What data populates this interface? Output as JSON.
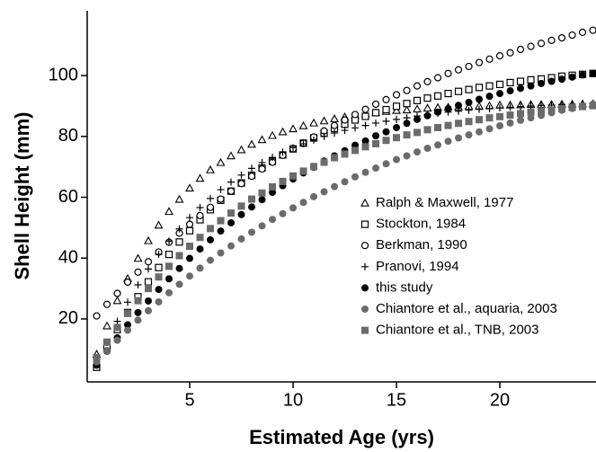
{
  "chart_data": {
    "type": "scatter",
    "xlabel": "Estimated Age (yrs)",
    "ylabel": "Shell Height (mm)",
    "xlim": [
      0,
      24.65
    ],
    "ylim": [
      -0.7,
      121.3
    ],
    "xticks": [
      5,
      10,
      15,
      20
    ],
    "yticks": [
      20,
      40,
      60,
      80,
      100
    ],
    "grid": false,
    "legend": "lower right",
    "x": [
      0.5,
      1,
      1.5,
      2,
      2.5,
      3,
      3.5,
      4,
      4.5,
      5,
      5.5,
      6,
      6.5,
      7,
      7.5,
      8,
      8.5,
      9,
      9.5,
      10,
      10.5,
      11,
      11.5,
      12,
      12.5,
      13,
      13.5,
      14,
      14.5,
      15,
      15.5,
      16,
      16.5,
      17,
      17.5,
      18,
      18.5,
      19,
      19.5,
      20,
      20.5,
      21,
      21.5,
      22,
      22.5,
      23,
      23.5,
      24,
      24.5
    ],
    "series": [
      {
        "name": "Ralph & Maxwell, 1977",
        "color": "#000000",
        "marker": "triangle-open",
        "values": [
          8.4,
          17.7,
          26.0,
          33.3,
          39.9,
          45.7,
          50.8,
          55.3,
          59.3,
          63.0,
          66.2,
          69.0,
          71.4,
          73.6,
          75.6,
          77.4,
          78.9,
          80.3,
          81.5,
          82.5,
          83.5,
          84.4,
          85.1,
          85.8,
          86.4,
          86.9,
          87.4,
          87.8,
          88.2,
          88.5,
          88.7,
          89.0,
          89.3,
          89.5,
          89.6,
          89.7,
          89.9,
          90.0,
          90.1,
          90.3,
          90.3,
          90.4,
          90.5,
          90.5,
          90.5,
          90.6,
          90.6,
          90.7,
          90.7
        ]
      },
      {
        "name": "Stockton, 1984",
        "color": "#000000",
        "marker": "square-open",
        "values": [
          4.1,
          10.5,
          16.5,
          22.1,
          27.3,
          32.2,
          36.9,
          41.2,
          45.3,
          49.0,
          52.6,
          55.9,
          59.0,
          62.0,
          64.7,
          67.2,
          69.6,
          71.8,
          73.9,
          75.9,
          77.8,
          79.5,
          81.1,
          82.6,
          84.0,
          85.4,
          86.6,
          87.8,
          88.8,
          89.9,
          90.8,
          91.8,
          92.6,
          93.3,
          94.1,
          94.8,
          95.4,
          96.1,
          96.6,
          97.1,
          97.7,
          98.1,
          98.6,
          98.9,
          99.3,
          99.8,
          100.1,
          100.4,
          100.7
        ]
      },
      {
        "name": "Berkman, 1990",
        "color": "#000000",
        "marker": "circle-open",
        "values": [
          21.0,
          24.8,
          28.4,
          32.1,
          35.4,
          38.8,
          42.0,
          45.2,
          48.2,
          51.1,
          54.0,
          56.7,
          59.4,
          62.0,
          64.5,
          66.9,
          69.3,
          71.5,
          73.8,
          75.9,
          77.8,
          79.8,
          81.8,
          83.6,
          85.4,
          87.2,
          88.9,
          90.6,
          92.1,
          93.7,
          95.1,
          96.6,
          98.0,
          99.3,
          100.7,
          101.9,
          103.0,
          104.3,
          105.4,
          106.5,
          107.5,
          108.6,
          109.6,
          110.6,
          111.6,
          112.4,
          113.3,
          114.2,
          114.9
        ]
      },
      {
        "name": "Pranovi, 1994",
        "color": "#000000",
        "marker": "plus",
        "values": [
          4.9,
          12.3,
          19.2,
          25.5,
          31.2,
          36.4,
          41.2,
          45.6,
          49.6,
          53.3,
          56.6,
          59.6,
          62.5,
          65.0,
          67.3,
          69.5,
          71.4,
          73.1,
          74.8,
          76.3,
          77.6,
          78.8,
          80.0,
          81.1,
          82.0,
          82.8,
          83.6,
          84.4,
          85.0,
          85.6,
          86.1,
          86.7,
          87.1,
          87.6,
          88.0,
          88.3,
          88.6,
          88.9,
          89.1,
          89.4,
          89.6,
          89.8,
          90.0,
          90.2,
          90.3,
          90.5,
          90.6,
          90.7,
          90.8
        ]
      },
      {
        "name": "this study",
        "color": "#000000",
        "marker": "circle",
        "values": [
          4.8,
          9.4,
          13.8,
          18.1,
          22.1,
          25.9,
          29.7,
          33.2,
          36.6,
          39.9,
          43.0,
          46.0,
          48.9,
          51.6,
          54.3,
          56.8,
          59.2,
          61.6,
          63.8,
          66.0,
          68.0,
          69.9,
          71.9,
          73.6,
          75.3,
          77.1,
          78.5,
          80.2,
          81.5,
          82.9,
          84.3,
          85.6,
          86.8,
          88.0,
          89.1,
          90.2,
          91.2,
          92.2,
          93.2,
          94.1,
          95.0,
          95.8,
          96.6,
          97.4,
          98.1,
          98.8,
          99.5,
          100.2,
          100.7
        ]
      },
      {
        "name": "Chiantore et al., aquaria, 2003",
        "color": "#6b6b6b",
        "marker": "circle",
        "values": [
          5.9,
          9.6,
          13.0,
          16.3,
          19.6,
          22.7,
          25.6,
          28.6,
          31.4,
          34.1,
          36.7,
          39.3,
          41.7,
          44.0,
          46.3,
          48.5,
          50.6,
          52.7,
          54.6,
          56.5,
          58.3,
          60.2,
          61.8,
          63.5,
          65.1,
          66.7,
          68.2,
          69.6,
          71.0,
          72.4,
          73.6,
          74.9,
          76.1,
          77.2,
          78.4,
          79.5,
          80.5,
          81.5,
          82.5,
          83.5,
          84.4,
          85.3,
          86.1,
          86.9,
          87.8,
          88.6,
          89.2,
          90.0,
          90.6
        ]
      },
      {
        "name": "Chiantore et al., TNB, 2003",
        "color": "#6b6b6b",
        "marker": "square",
        "values": [
          7.3,
          12.4,
          17.2,
          21.8,
          26.0,
          30.0,
          33.8,
          37.3,
          40.8,
          43.9,
          46.8,
          49.7,
          52.3,
          54.8,
          57.1,
          59.4,
          61.4,
          63.4,
          65.2,
          67.0,
          68.6,
          70.1,
          71.5,
          73.0,
          74.2,
          75.4,
          76.6,
          77.6,
          78.7,
          79.6,
          80.5,
          81.3,
          82.2,
          82.9,
          83.6,
          84.3,
          84.9,
          85.5,
          86.1,
          86.5,
          87.0,
          87.5,
          88.0,
          88.4,
          88.7,
          89.1,
          89.5,
          89.8,
          90.1
        ]
      }
    ]
  }
}
